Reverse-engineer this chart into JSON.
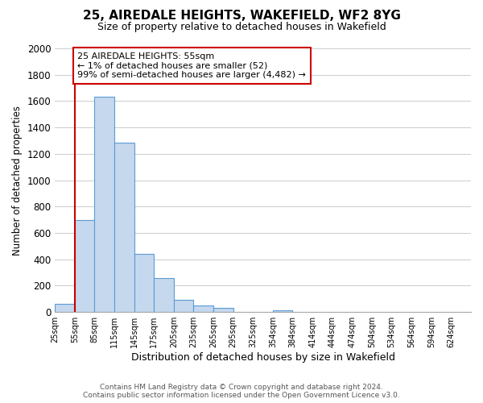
{
  "title": "25, AIREDALE HEIGHTS, WAKEFIELD, WF2 8YG",
  "subtitle": "Size of property relative to detached houses in Wakefield",
  "xlabel": "Distribution of detached houses by size in Wakefield",
  "ylabel": "Number of detached properties",
  "bin_labels": [
    "25sqm",
    "55sqm",
    "85sqm",
    "115sqm",
    "145sqm",
    "175sqm",
    "205sqm",
    "235sqm",
    "265sqm",
    "295sqm",
    "325sqm",
    "354sqm",
    "384sqm",
    "414sqm",
    "444sqm",
    "474sqm",
    "504sqm",
    "534sqm",
    "564sqm",
    "594sqm",
    "624sqm"
  ],
  "bar_heights": [
    65,
    700,
    1635,
    1285,
    440,
    255,
    90,
    50,
    30,
    0,
    0,
    15,
    0,
    0,
    0,
    0,
    0,
    0,
    0,
    0,
    0
  ],
  "bar_color": "#c5d8ed",
  "bar_edge_color": "#5b9bd5",
  "ylim": [
    0,
    2000
  ],
  "yticks": [
    0,
    200,
    400,
    600,
    800,
    1000,
    1200,
    1400,
    1600,
    1800,
    2000
  ],
  "property_line_color": "#cc0000",
  "annotation_text": "25 AIREDALE HEIGHTS: 55sqm\n← 1% of detached houses are smaller (52)\n99% of semi-detached houses are larger (4,482) →",
  "annotation_box_color": "#ffffff",
  "annotation_box_edge_color": "#cc0000",
  "footer_line1": "Contains HM Land Registry data © Crown copyright and database right 2024.",
  "footer_line2": "Contains public sector information licensed under the Open Government Licence v3.0.",
  "background_color": "#ffffff",
  "grid_color": "#cccccc"
}
